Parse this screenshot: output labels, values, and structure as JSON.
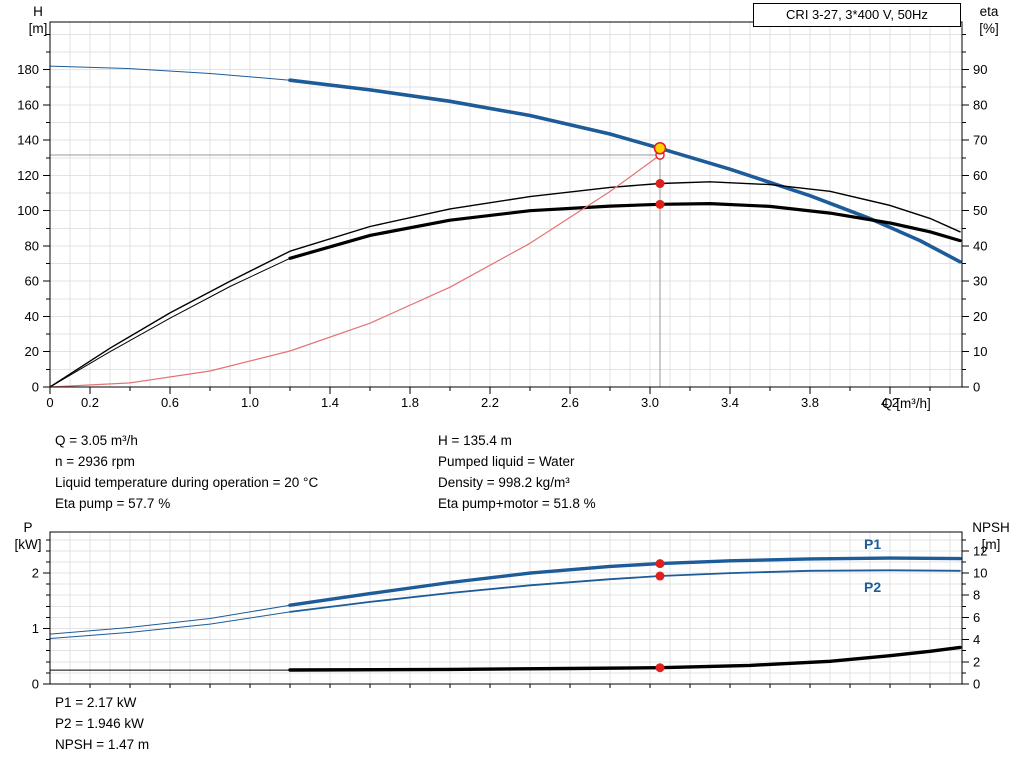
{
  "axis_titles": {
    "top_left": "H\n[m]",
    "top_right": "eta\n[%]",
    "q": "Q [m³/h]",
    "bottom_left": "P\n[kW]",
    "bottom_right": "NPSH\n[m]"
  },
  "info_top": {
    "left": [
      "Q = 3.05 m³/h",
      "n = 2936 rpm",
      "Liquid temperature during operation = 20 °C",
      "Eta pump = 57.7 %"
    ],
    "right": [
      "H = 135.4 m",
      "Pumped liquid = Water",
      "Density = 998.2 kg/m³",
      "Eta pump+motor = 51.8 %"
    ]
  },
  "info_bottom": [
    "P1 = 2.17 kW",
    "P2 = 1.946 kW",
    "NPSH = 1.47 m"
  ],
  "colors": {
    "accent_blue": "#1d5b99",
    "curve_black": "#000000",
    "system_curve_red": "#e57373",
    "marker_red": "#e01f1f",
    "duty_point_yellow": "#ffd400",
    "grid_gray": "#e3e3e3",
    "crosshair_gray": "#999999"
  },
  "chart_data": [
    {
      "type": "line",
      "title": "CRI 3-27, 3*400 V, 50Hz",
      "x_label": "Q [m³/h]",
      "y_left_label": "H [m]",
      "y_right_label": "eta [%]",
      "x_range": [
        0,
        4.56
      ],
      "y_left_range": [
        0,
        207
      ],
      "y_right_range": [
        0,
        103.5
      ],
      "grid_x_step": 0.1,
      "grid_y_step": 10,
      "x_minor_step": 0.2,
      "y_left_minor_step": 10,
      "y_right_minor_step": 5,
      "x_tick_labels": [
        "0",
        "0.2",
        "0.6",
        "1.0",
        "1.4",
        "1.8",
        "2.2",
        "2.6",
        "3.0",
        "3.4",
        "3.8",
        "4.2"
      ],
      "y_left_tick_labels": [
        "0",
        "20",
        "40",
        "60",
        "80",
        "100",
        "120",
        "140",
        "160",
        "180"
      ],
      "y_right_tick_labels": [
        "0",
        "10",
        "20",
        "30",
        "40",
        "50",
        "60",
        "70",
        "80",
        "90"
      ],
      "crosshair": {
        "x": 3.05,
        "y": 131.5
      },
      "series": [
        {
          "name": "qh-out-of-range",
          "axis": "L",
          "color": "#1d5b99",
          "width": 1,
          "points": [
            [
              0,
              182
            ],
            [
              0.4,
              180.6
            ],
            [
              0.8,
              177.8
            ],
            [
              1.2,
              174
            ]
          ]
        },
        {
          "name": "qh",
          "axis": "L",
          "color": "#1d5b99",
          "width": 3.6,
          "points": [
            [
              1.2,
              174
            ],
            [
              1.6,
              168.5
            ],
            [
              2,
              162
            ],
            [
              2.4,
              154
            ],
            [
              2.8,
              143.5
            ],
            [
              3.05,
              135.4
            ],
            [
              3.4,
              123.5
            ],
            [
              3.8,
              108.5
            ],
            [
              4.1,
              95.5
            ],
            [
              4.35,
              83
            ],
            [
              4.55,
              71
            ]
          ]
        },
        {
          "name": "eta-pump",
          "axis": "R",
          "color": "#000000",
          "width": 1.4,
          "points": [
            [
              0,
              0
            ],
            [
              0.3,
              11
            ],
            [
              0.6,
              21
            ],
            [
              0.9,
              30
            ],
            [
              1.2,
              38.5
            ],
            [
              1.6,
              45.5
            ],
            [
              2,
              50.5
            ],
            [
              2.4,
              54
            ],
            [
              2.8,
              56.6
            ],
            [
              3.05,
              57.7
            ],
            [
              3.3,
              58.2
            ],
            [
              3.6,
              57.4
            ],
            [
              3.9,
              55.5
            ],
            [
              4.2,
              51.5
            ],
            [
              4.4,
              47.8
            ],
            [
              4.55,
              44
            ]
          ]
        },
        {
          "name": "eta-pump-motor-out-of-range",
          "axis": "R",
          "color": "#000000",
          "width": 1,
          "points": [
            [
              0,
              0
            ],
            [
              0.3,
              10
            ],
            [
              0.6,
              19.5
            ],
            [
              0.9,
              28.5
            ],
            [
              1.2,
              36.5
            ]
          ]
        },
        {
          "name": "eta-pump-motor",
          "axis": "R",
          "color": "#000000",
          "width": 3.2,
          "points": [
            [
              1.2,
              36.5
            ],
            [
              1.6,
              43
            ],
            [
              2,
              47.3
            ],
            [
              2.4,
              50
            ],
            [
              2.8,
              51.3
            ],
            [
              3.05,
              51.8
            ],
            [
              3.3,
              52
            ],
            [
              3.6,
              51.2
            ],
            [
              3.9,
              49.3
            ],
            [
              4.2,
              46.5
            ],
            [
              4.4,
              44
            ],
            [
              4.55,
              41.5
            ]
          ]
        },
        {
          "name": "system-curve",
          "axis": "L",
          "color": "#e57373",
          "width": 1.2,
          "points": [
            [
              0,
              0
            ],
            [
              0.4,
              2.3
            ],
            [
              0.8,
              9.1
            ],
            [
              1.2,
              20.4
            ],
            [
              1.6,
              36.2
            ],
            [
              2,
              56.6
            ],
            [
              2.4,
              81.5
            ],
            [
              2.8,
              110.9
            ],
            [
              3.05,
              131.5
            ]
          ]
        }
      ],
      "markers": [
        {
          "shape": "open-circle",
          "axis": "L",
          "x": 3.05,
          "v": 131.5
        },
        {
          "shape": "duty-point",
          "axis": "L",
          "x": 3.05,
          "v": 135.4
        },
        {
          "shape": "dot",
          "axis": "R",
          "x": 3.05,
          "v": 57.7
        },
        {
          "shape": "dot",
          "axis": "R",
          "x": 3.05,
          "v": 51.8
        }
      ]
    },
    {
      "type": "line",
      "x_label": "Q [m³/h]",
      "y_left_label": "P [kW]",
      "y_right_label": "NPSH [m]",
      "x_range": [
        0,
        4.56
      ],
      "y_left_range": [
        0,
        2.74
      ],
      "y_right_range": [
        0,
        13.7
      ],
      "grid_x_step": 0.1,
      "grid_y_step": 0.2,
      "x_minor_step": 0.2,
      "y_left_minor_step": 0.2,
      "y_right_minor_step": 1,
      "y_left_tick_labels": [
        "0",
        "1",
        "2"
      ],
      "y_right_tick_labels": [
        "0",
        "2",
        "4",
        "6",
        "8",
        "10",
        "12"
      ],
      "curve_labels": [
        "P1",
        "P2"
      ],
      "series": [
        {
          "name": "p1-out-of-range",
          "axis": "L",
          "color": "#1d5b99",
          "width": 1,
          "points": [
            [
              0,
              0.9
            ],
            [
              0.4,
              1.02
            ],
            [
              0.8,
              1.18
            ],
            [
              1.2,
              1.42
            ]
          ]
        },
        {
          "name": "p1",
          "axis": "L",
          "color": "#1d5b99",
          "width": 3.4,
          "points": [
            [
              1.2,
              1.42
            ],
            [
              1.6,
              1.63
            ],
            [
              2,
              1.83
            ],
            [
              2.4,
              2
            ],
            [
              2.8,
              2.12
            ],
            [
              3.05,
              2.17
            ],
            [
              3.4,
              2.22
            ],
            [
              3.8,
              2.255
            ],
            [
              4.2,
              2.27
            ],
            [
              4.55,
              2.26
            ]
          ]
        },
        {
          "name": "p2-out-of-range",
          "axis": "L",
          "color": "#1d5b99",
          "width": 1,
          "points": [
            [
              0,
              0.82
            ],
            [
              0.4,
              0.93
            ],
            [
              0.8,
              1.08
            ],
            [
              1.2,
              1.3
            ]
          ]
        },
        {
          "name": "p2",
          "axis": "L",
          "color": "#1d5b99",
          "width": 1.8,
          "points": [
            [
              1.2,
              1.3
            ],
            [
              1.6,
              1.48
            ],
            [
              2,
              1.64
            ],
            [
              2.4,
              1.78
            ],
            [
              2.8,
              1.89
            ],
            [
              3.05,
              1.946
            ],
            [
              3.4,
              2
            ],
            [
              3.8,
              2.04
            ],
            [
              4.2,
              2.05
            ],
            [
              4.55,
              2.04
            ]
          ]
        },
        {
          "name": "npsh-out-of-range",
          "axis": "R",
          "color": "#000000",
          "width": 1,
          "points": [
            [
              0,
              1.25
            ],
            [
              0.6,
              1.25
            ],
            [
              1.2,
              1.25
            ]
          ]
        },
        {
          "name": "npsh",
          "axis": "R",
          "color": "#000000",
          "width": 3.4,
          "points": [
            [
              1.2,
              1.26
            ],
            [
              2,
              1.32
            ],
            [
              2.6,
              1.4
            ],
            [
              3.05,
              1.47
            ],
            [
              3.5,
              1.68
            ],
            [
              3.9,
              2.05
            ],
            [
              4.2,
              2.55
            ],
            [
              4.4,
              2.95
            ],
            [
              4.55,
              3.3
            ]
          ]
        }
      ],
      "markers": [
        {
          "shape": "dot",
          "axis": "L",
          "x": 3.05,
          "v": 2.17
        },
        {
          "shape": "dot",
          "axis": "L",
          "x": 3.05,
          "v": 1.946
        },
        {
          "shape": "dot",
          "axis": "R",
          "x": 3.05,
          "v": 1.47
        }
      ]
    }
  ]
}
